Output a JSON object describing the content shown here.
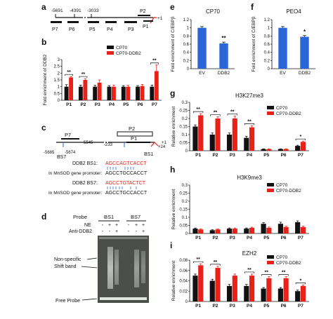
{
  "colors": {
    "black": "#111111",
    "red": "#e8221b",
    "blue": "#2b66d9",
    "red_text": "#e8221b"
  },
  "panel_letters": {
    "a": "a",
    "b": "b",
    "c": "c",
    "d": "d",
    "e": "e",
    "f": "f",
    "g": "g",
    "h": "h",
    "i": "i"
  },
  "panel_a": {
    "positions": [
      "-5691",
      "-4391",
      "-3033",
      "+1"
    ],
    "regions": [
      "P7",
      "P6",
      "P5",
      "P4",
      "P3",
      "P2",
      "P1"
    ]
  },
  "panel_c": {
    "upper_labels": [
      "P7",
      "-5545",
      "-233",
      "+24",
      "+1"
    ],
    "lower_labels": [
      "-5685",
      "-5674",
      "BS7",
      "BS1"
    ],
    "boxes": [
      "P2",
      "P1"
    ],
    "bs1_title": "DDB2 BS1:",
    "bs1_seq": "AGCCAGTCACCT",
    "bs1_mnsod_label": "In MnSOD gene promoter:",
    "bs1_mnsod_seq": "AGCCTGCCACCT",
    "bs7_title": "DDB2 BS7:",
    "bs7_seq": "AGCCTGTACTCT",
    "bs7_mnsod_label": "In MnSOD gene promoter:",
    "bs7_mnsod_seq": "AGCCTGCCACCT"
  },
  "panel_d": {
    "probe_label": "Probe",
    "probes": [
      "BS1",
      "BS7"
    ],
    "rows": [
      {
        "label": "NE",
        "signs": [
          "-",
          "+",
          "+",
          "-",
          "+",
          "+"
        ]
      },
      {
        "label": "Anti-DDB2",
        "signs": [
          "-",
          "-",
          "+",
          "-",
          "-",
          "+"
        ]
      }
    ],
    "annotations": [
      "Non-specific",
      "Shift band",
      "Free Probe"
    ]
  },
  "chart_data": [
    {
      "id": "b",
      "type": "bar",
      "ylabel": "Fold enrichment of DDB2",
      "ylim": [
        0,
        3
      ],
      "yticks": [
        "0",
        "0.5",
        "1",
        "1.5",
        "2",
        "2.5",
        "3"
      ],
      "categories": [
        "P1",
        "P2",
        "P3",
        "P4",
        "P5",
        "P6",
        "P7"
      ],
      "legend": [
        "CP70",
        "CP70-DDB2"
      ],
      "series": [
        {
          "name": "CP70",
          "values": [
            1.0,
            1.0,
            1.0,
            1.0,
            1.0,
            1.0,
            1.0
          ]
        },
        {
          "name": "CP70-DDB2",
          "values": [
            1.68,
            1.5,
            1.3,
            1.0,
            1.0,
            1.05,
            2.15
          ]
        }
      ],
      "errors": [
        [
          0.15,
          0.12,
          0.1,
          0.08,
          0.08,
          0.08,
          0.12
        ],
        [
          0.07,
          0.1,
          0.2,
          0.12,
          0.1,
          0.12,
          0.45
        ]
      ],
      "significance": [
        "**",
        "**",
        "",
        "",
        "",
        "",
        "**"
      ]
    },
    {
      "id": "e",
      "type": "bar",
      "title": "CP70",
      "ylabel": "Fold enrichment of C/EBPβ",
      "ylim": [
        0,
        1.2
      ],
      "yticks": [
        "0",
        "0.2",
        "0.4",
        "0.6",
        "0.8",
        "1",
        "1.2"
      ],
      "categories": [
        "EV",
        "DDB2"
      ],
      "values": [
        1.0,
        0.62
      ],
      "errors": [
        0.03,
        0.03
      ],
      "significance": [
        "",
        "**"
      ]
    },
    {
      "id": "f",
      "type": "bar",
      "title": "PEO4",
      "ylabel": "Fold enrichment of C/EBPβ",
      "ylim": [
        0,
        1.2
      ],
      "yticks": [
        "0",
        "0.2",
        "0.4",
        "0.6",
        "0.8",
        "1",
        "1.2"
      ],
      "categories": [
        "EV",
        "DDB2"
      ],
      "values": [
        1.0,
        0.78
      ],
      "errors": [
        0.03,
        0.03
      ],
      "significance": [
        "",
        "*"
      ]
    },
    {
      "id": "g",
      "type": "bar",
      "title": "H3K27me3",
      "ylabel": "Relative enrichment",
      "ylim": [
        0,
        0.3
      ],
      "yticks": [
        "0",
        "0.05",
        "0.1",
        "0.15",
        "0.2",
        "0.25",
        "0.3"
      ],
      "categories": [
        "P1",
        "P2",
        "P3",
        "P4",
        "P5",
        "P6",
        "P7"
      ],
      "legend": [
        "CP70",
        "CP70-DDB2"
      ],
      "series": [
        {
          "name": "CP70",
          "values": [
            0.15,
            0.1,
            0.1,
            0.08,
            0.01,
            0.01,
            0.03
          ]
        },
        {
          "name": "CP70-DDB2",
          "values": [
            0.22,
            0.2,
            0.2,
            0.145,
            0.01,
            0.01,
            0.055
          ]
        }
      ],
      "errors": [
        [
          0.01,
          0.01,
          0.01,
          0.01,
          0.002,
          0.002,
          0.004
        ],
        [
          0.01,
          0.01,
          0.015,
          0.01,
          0.002,
          0.002,
          0.005
        ]
      ],
      "significance": [
        "**",
        "**",
        "**",
        "**",
        "",
        "",
        "*"
      ]
    },
    {
      "id": "h",
      "type": "bar",
      "title": "H3K9me3",
      "ylabel": "Relative enrichment",
      "ylim": [
        0,
        0.3
      ],
      "yticks": [
        "0",
        "0.05",
        "0.1",
        "0.15",
        "0.2",
        "0.25",
        "0.3"
      ],
      "categories": [
        "P1",
        "P2",
        "P3",
        "P4",
        "P5",
        "P6",
        "P7"
      ],
      "legend": [
        "CP70",
        "CP70-DDB2"
      ],
      "series": [
        {
          "name": "CP70",
          "values": [
            0.03,
            0.02,
            0.03,
            0.03,
            0.06,
            0.06,
            0.07
          ]
        },
        {
          "name": "CP70-DDB2",
          "values": [
            0.025,
            0.025,
            0.03,
            0.035,
            0.035,
            0.04,
            0.04
          ]
        }
      ],
      "errors": [
        [
          0.004,
          0.003,
          0.004,
          0.004,
          0.008,
          0.01,
          0.008
        ],
        [
          0.003,
          0.003,
          0.004,
          0.004,
          0.005,
          0.005,
          0.006
        ]
      ],
      "significance": [
        "",
        "",
        "",
        "",
        "",
        "",
        ""
      ]
    },
    {
      "id": "i",
      "type": "bar",
      "title": "EZH2",
      "ylabel": "Relative enrichment",
      "ylim": [
        0,
        0.08
      ],
      "yticks": [
        "0",
        "0.02",
        "0.04",
        "0.06",
        "0.08"
      ],
      "categories": [
        "P1",
        "P2",
        "P3",
        "P4",
        "P5",
        "P6",
        "P7"
      ],
      "legend": [
        "CP70",
        "CP70-DDB2"
      ],
      "series": [
        {
          "name": "CP70",
          "values": [
            0.05,
            0.04,
            0.03,
            0.03,
            0.025,
            0.025,
            0.02
          ]
        },
        {
          "name": "CP70-DDB2",
          "values": [
            0.07,
            0.065,
            0.05,
            0.05,
            0.045,
            0.045,
            0.03
          ]
        }
      ],
      "errors": [
        [
          0.003,
          0.003,
          0.003,
          0.003,
          0.002,
          0.002,
          0.002
        ],
        [
          0.003,
          0.003,
          0.003,
          0.003,
          0.003,
          0.003,
          0.002
        ]
      ],
      "significance": [
        "**",
        "**",
        "",
        "**",
        "**",
        "**",
        "*"
      ]
    }
  ]
}
